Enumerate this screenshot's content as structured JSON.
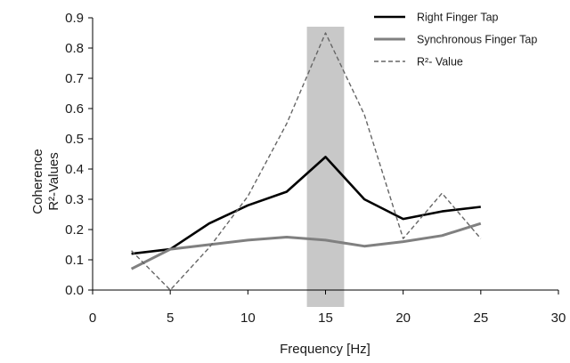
{
  "chart_data": {
    "type": "line",
    "xlabel": "Frequency [Hz]",
    "ylabel_lines": [
      "Coherence",
      "R²-Values"
    ],
    "xlim": [
      0,
      30
    ],
    "ylim": [
      0,
      0.9
    ],
    "xticks": [
      0,
      5,
      10,
      15,
      20,
      25,
      30
    ],
    "yticks": [
      0.0,
      0.1,
      0.2,
      0.3,
      0.4,
      0.5,
      0.6,
      0.7,
      0.8,
      0.9
    ],
    "ytick_labels": [
      "0.0",
      "0.1",
      "0.2",
      "0.3",
      "0.4",
      "0.5",
      "0.6",
      "0.7",
      "0.8",
      "0.9"
    ],
    "grid": false,
    "legend_position": "top-right",
    "highlight_band": {
      "from": 13.8,
      "to": 16.2,
      "color": "#c8c8c8"
    },
    "series": [
      {
        "name": "Right Finger Tap",
        "style": "solid",
        "color": "#000000",
        "x": [
          2.5,
          5,
          7.5,
          10,
          12.5,
          15,
          17.5,
          20,
          22.5,
          25
        ],
        "values": [
          0.12,
          0.135,
          0.22,
          0.28,
          0.325,
          0.44,
          0.3,
          0.235,
          0.26,
          0.275
        ]
      },
      {
        "name": "Synchronous Finger Tap",
        "style": "solid",
        "color": "#808080",
        "x": [
          2.5,
          5,
          7.5,
          10,
          12.5,
          15,
          17.5,
          20,
          22.5,
          25
        ],
        "values": [
          0.07,
          0.135,
          0.15,
          0.165,
          0.175,
          0.165,
          0.145,
          0.16,
          0.18,
          0.22
        ]
      },
      {
        "name": "R²- Value",
        "style": "dashed",
        "color": "#666666",
        "x": [
          2.5,
          5,
          7.5,
          10,
          12.5,
          15,
          17.5,
          20,
          22.5,
          25
        ],
        "values": [
          0.13,
          0.0,
          0.14,
          0.31,
          0.55,
          0.85,
          0.58,
          0.17,
          0.32,
          0.17
        ]
      }
    ]
  }
}
